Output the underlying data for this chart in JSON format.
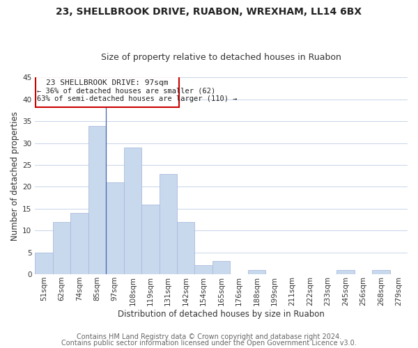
{
  "title": "23, SHELLBROOK DRIVE, RUABON, WREXHAM, LL14 6BX",
  "subtitle": "Size of property relative to detached houses in Ruabon",
  "xlabel": "Distribution of detached houses by size in Ruabon",
  "ylabel": "Number of detached properties",
  "bar_labels": [
    "51sqm",
    "62sqm",
    "74sqm",
    "85sqm",
    "97sqm",
    "108sqm",
    "119sqm",
    "131sqm",
    "142sqm",
    "154sqm",
    "165sqm",
    "176sqm",
    "188sqm",
    "199sqm",
    "211sqm",
    "222sqm",
    "233sqm",
    "245sqm",
    "256sqm",
    "268sqm",
    "279sqm"
  ],
  "bar_values": [
    5,
    12,
    14,
    34,
    21,
    29,
    16,
    23,
    12,
    2,
    3,
    0,
    1,
    0,
    0,
    0,
    0,
    1,
    0,
    1,
    0
  ],
  "bar_color": "#c8d9ee",
  "bar_edge_color": "#aabbdd",
  "ylim": [
    0,
    45
  ],
  "yticks": [
    0,
    5,
    10,
    15,
    20,
    25,
    30,
    35,
    40,
    45
  ],
  "annotation_title": "23 SHELLBROOK DRIVE: 97sqm",
  "annotation_line1": "← 36% of detached houses are smaller (62)",
  "annotation_line2": "63% of semi-detached houses are larger (110) →",
  "annotation_box_color": "#ffffff",
  "annotation_box_edge": "#cc0000",
  "footer_line1": "Contains HM Land Registry data © Crown copyright and database right 2024.",
  "footer_line2": "Contains public sector information licensed under the Open Government Licence v3.0.",
  "bg_color": "#ffffff",
  "grid_color": "#c8d4e8",
  "title_fontsize": 10,
  "subtitle_fontsize": 9,
  "axis_label_fontsize": 8.5,
  "tick_fontsize": 7.5,
  "footer_fontsize": 7,
  "vline_x_index": 4,
  "vline_color": "#4466aa"
}
